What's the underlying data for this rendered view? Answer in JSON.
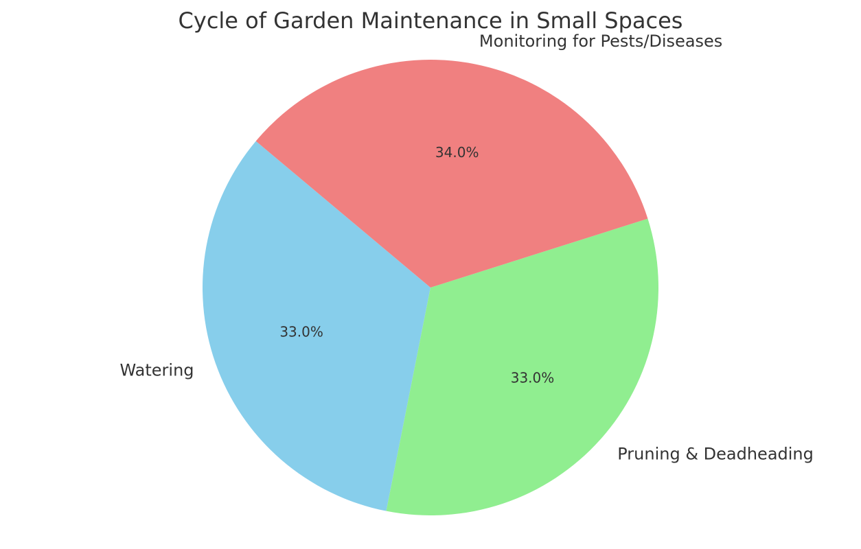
{
  "chart_data": {
    "type": "pie",
    "title": "Cycle of Garden Maintenance in Small Spaces",
    "categories": [
      "Watering",
      "Pruning & Deadheading",
      "Monitoring for Pests/Diseases"
    ],
    "values": [
      33,
      33,
      34
    ],
    "value_labels": [
      "33.0%",
      "33.0%",
      "34.0%"
    ],
    "colors": [
      "#87ceeb",
      "#90ee90",
      "#f08080"
    ]
  }
}
